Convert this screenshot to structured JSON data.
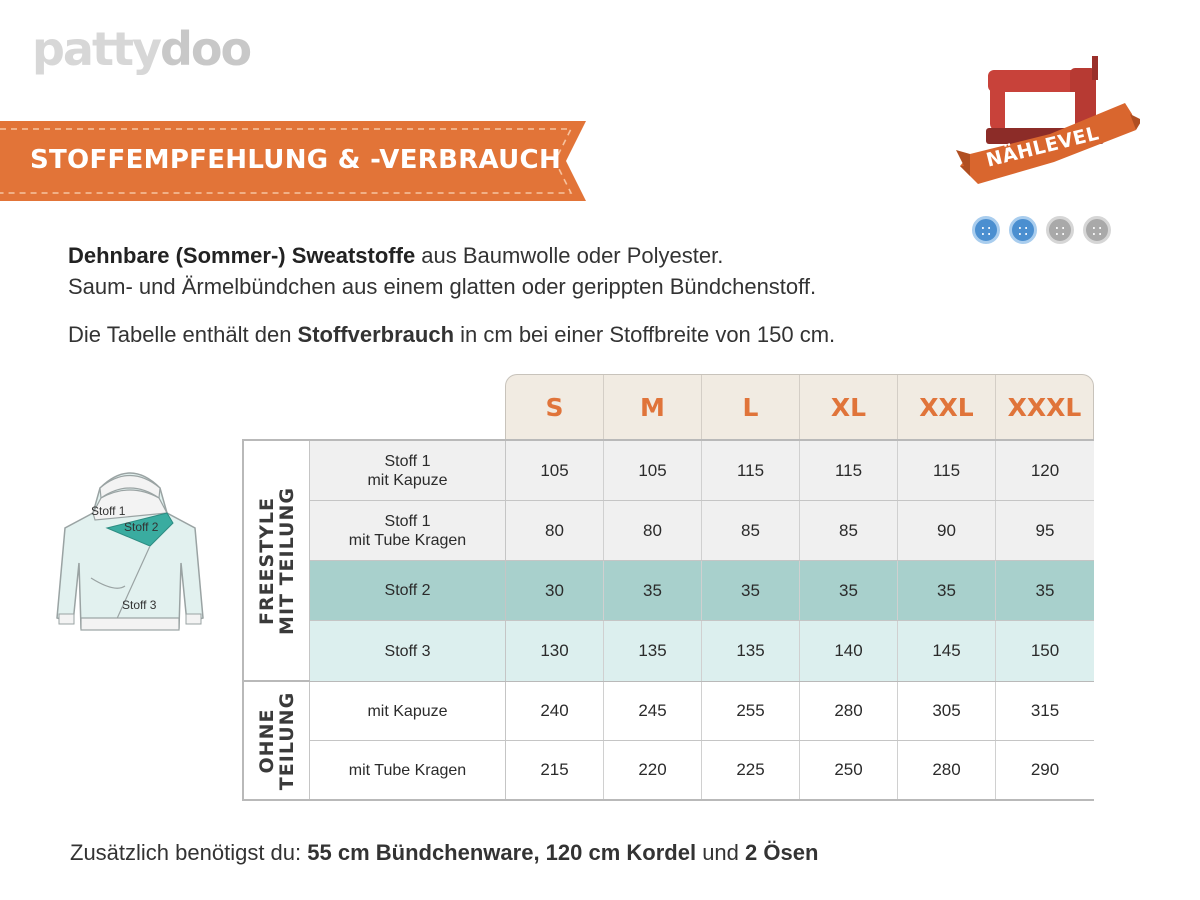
{
  "brand": {
    "logo_text_a": "patty",
    "logo_text_b": "doo"
  },
  "banner": {
    "title": "STOFFEMPFEHLUNG & -VERBRAUCH"
  },
  "badge": {
    "label": "NÄHLEVEL",
    "level": 2,
    "max_level": 4
  },
  "intro": {
    "line1_bold": "Dehnbare (Sommer-) Sweatstoffe",
    "line1_rest": " aus Baumwolle oder Polyester.",
    "line2": "Saum- und Ärmelbündchen aus einem glatten oder gerippten Bündchenstoff.",
    "line3_a": "Die Tabelle enthält den ",
    "line3_bold": "Stoffverbrauch",
    "line3_b": " in cm bei einer Stoffbreite von 150 cm."
  },
  "illustration": {
    "label1": "Stoff 1",
    "label2": "Stoff 2",
    "label3": "Stoff 3"
  },
  "table": {
    "sizes": [
      "S",
      "M",
      "L",
      "XL",
      "XXL",
      "XXXL"
    ],
    "groups": [
      {
        "label": "FREESTYLE\nMIT TEILUNG",
        "rows": [
          {
            "label": "Stoff 1\nmit Kapuze",
            "values": [
              "105",
              "105",
              "115",
              "115",
              "115",
              "120"
            ]
          },
          {
            "label": "Stoff 1\nmit Tube Kragen",
            "values": [
              "80",
              "80",
              "85",
              "85",
              "90",
              "95"
            ]
          },
          {
            "label": "Stoff 2",
            "values": [
              "30",
              "35",
              "35",
              "35",
              "35",
              "35"
            ]
          },
          {
            "label": "Stoff 3",
            "values": [
              "130",
              "135",
              "135",
              "140",
              "145",
              "150"
            ]
          }
        ]
      },
      {
        "label": "OHNE\nTEILUNG",
        "rows": [
          {
            "label": "mit Kapuze",
            "values": [
              "240",
              "245",
              "255",
              "280",
              "305",
              "315"
            ]
          },
          {
            "label": "mit Tube Kragen",
            "values": [
              "215",
              "220",
              "225",
              "250",
              "280",
              "290"
            ]
          }
        ]
      }
    ]
  },
  "footer": {
    "a": "Zusätzlich benötigst du: ",
    "b": "55 cm Bündchenware, 120 cm Kordel",
    "c": " und ",
    "d": "2 Ösen"
  },
  "colors": {
    "banner": "#e27438",
    "size_text": "#e0743a",
    "row_stoff1": "#f0f0f0",
    "row_stoff2": "#a8d0cc",
    "row_stoff3": "#dcefee",
    "level_on": "#4b8fd0",
    "level_off": "#a9a9a9"
  }
}
